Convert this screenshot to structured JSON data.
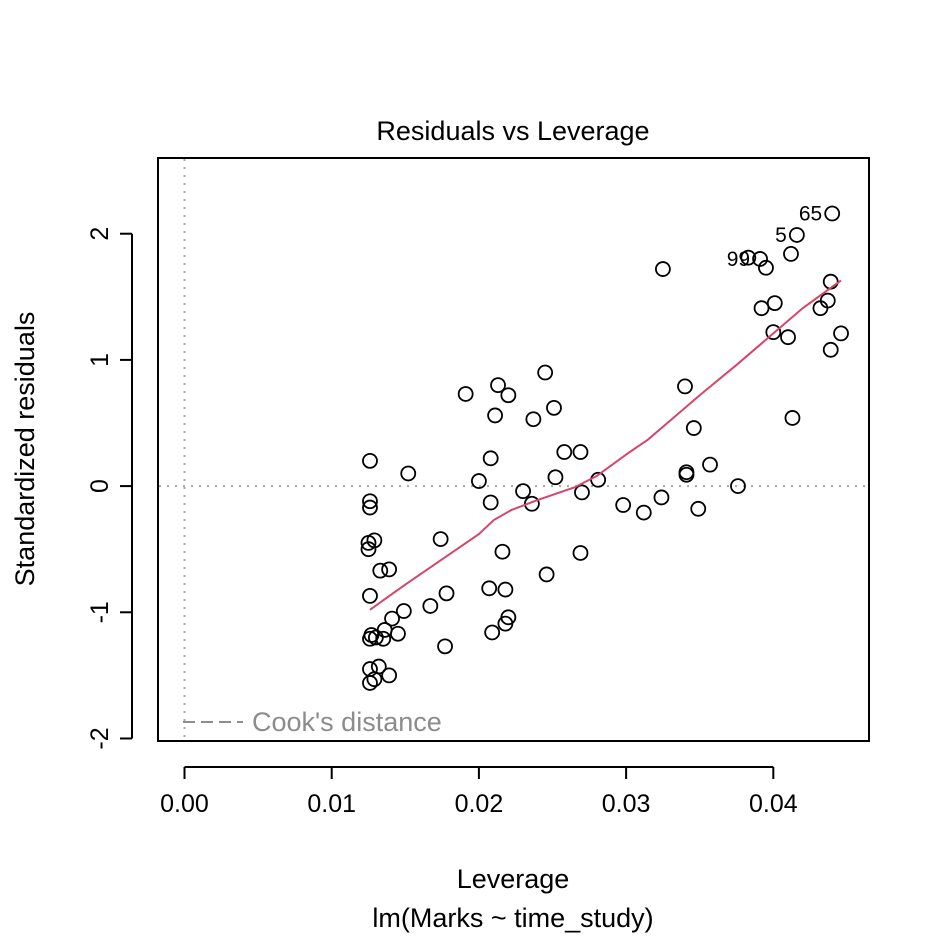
{
  "chart_data": {
    "type": "scatter",
    "title": "Residuals vs Leverage",
    "xlabel": "Leverage",
    "subtitle": "lm(Marks ~ time_study)",
    "ylabel": "Standardized residuals",
    "xlim": [
      -0.0018,
      0.0465
    ],
    "ylim": [
      -2.02,
      2.6
    ],
    "x_ticks": [
      {
        "value": 0.0,
        "label": "0.00"
      },
      {
        "value": 0.01,
        "label": "0.01"
      },
      {
        "value": 0.02,
        "label": "0.02"
      },
      {
        "value": 0.03,
        "label": "0.03"
      },
      {
        "value": 0.04,
        "label": "0.04"
      }
    ],
    "y_ticks": [
      {
        "value": -2,
        "label": "-2"
      },
      {
        "value": -1,
        "label": "-1"
      },
      {
        "value": 0,
        "label": "0"
      },
      {
        "value": 1,
        "label": "1"
      },
      {
        "value": 2,
        "label": "2"
      }
    ],
    "reference_lines": {
      "vertical_x": 0,
      "horizontal_y": 0
    },
    "legend": {
      "label": "Cook's distance",
      "position": "bottom-left"
    },
    "colors": {
      "smooth": "#d6456a",
      "reference": "#a8a8a8",
      "legend_text": "#8c8c8c"
    },
    "labeled_points": [
      {
        "label": "65",
        "x": 0.044,
        "y": 2.16
      },
      {
        "label": "5",
        "x": 0.0416,
        "y": 1.99
      },
      {
        "label": "99",
        "x": 0.0391,
        "y": 1.8
      }
    ],
    "points": [
      {
        "x": 0.044,
        "y": 2.16
      },
      {
        "x": 0.0416,
        "y": 1.99
      },
      {
        "x": 0.0391,
        "y": 1.8
      },
      {
        "x": 0.0383,
        "y": 1.81
      },
      {
        "x": 0.0395,
        "y": 1.73
      },
      {
        "x": 0.0412,
        "y": 1.84
      },
      {
        "x": 0.0325,
        "y": 1.72
      },
      {
        "x": 0.0439,
        "y": 1.62
      },
      {
        "x": 0.0437,
        "y": 1.47
      },
      {
        "x": 0.0401,
        "y": 1.45
      },
      {
        "x": 0.0392,
        "y": 1.41
      },
      {
        "x": 0.0432,
        "y": 1.41
      },
      {
        "x": 0.04,
        "y": 1.22
      },
      {
        "x": 0.0446,
        "y": 1.21
      },
      {
        "x": 0.041,
        "y": 1.18
      },
      {
        "x": 0.0439,
        "y": 1.08
      },
      {
        "x": 0.0245,
        "y": 0.9
      },
      {
        "x": 0.034,
        "y": 0.79
      },
      {
        "x": 0.0213,
        "y": 0.8
      },
      {
        "x": 0.0191,
        "y": 0.73
      },
      {
        "x": 0.022,
        "y": 0.72
      },
      {
        "x": 0.0251,
        "y": 0.62
      },
      {
        "x": 0.0211,
        "y": 0.56
      },
      {
        "x": 0.0237,
        "y": 0.53
      },
      {
        "x": 0.0413,
        "y": 0.54
      },
      {
        "x": 0.0346,
        "y": 0.46
      },
      {
        "x": 0.0258,
        "y": 0.27
      },
      {
        "x": 0.0269,
        "y": 0.27
      },
      {
        "x": 0.0126,
        "y": 0.2
      },
      {
        "x": 0.0208,
        "y": 0.22
      },
      {
        "x": 0.0357,
        "y": 0.17
      },
      {
        "x": 0.0152,
        "y": 0.1
      },
      {
        "x": 0.0341,
        "y": 0.11
      },
      {
        "x": 0.0341,
        "y": 0.09
      },
      {
        "x": 0.0252,
        "y": 0.07
      },
      {
        "x": 0.02,
        "y": 0.04
      },
      {
        "x": 0.0281,
        "y": 0.05
      },
      {
        "x": 0.0376,
        "y": 0.0
      },
      {
        "x": 0.023,
        "y": -0.04
      },
      {
        "x": 0.027,
        "y": -0.05
      },
      {
        "x": 0.0324,
        "y": -0.09
      },
      {
        "x": 0.0126,
        "y": -0.12
      },
      {
        "x": 0.0208,
        "y": -0.13
      },
      {
        "x": 0.0236,
        "y": -0.14
      },
      {
        "x": 0.0298,
        "y": -0.15
      },
      {
        "x": 0.0126,
        "y": -0.17
      },
      {
        "x": 0.0312,
        "y": -0.21
      },
      {
        "x": 0.0349,
        "y": -0.18
      },
      {
        "x": 0.0174,
        "y": -0.42
      },
      {
        "x": 0.0129,
        "y": -0.43
      },
      {
        "x": 0.0125,
        "y": -0.45
      },
      {
        "x": 0.0125,
        "y": -0.5
      },
      {
        "x": 0.0216,
        "y": -0.52
      },
      {
        "x": 0.0269,
        "y": -0.53
      },
      {
        "x": 0.0133,
        "y": -0.67
      },
      {
        "x": 0.0139,
        "y": -0.66
      },
      {
        "x": 0.0246,
        "y": -0.7
      },
      {
        "x": 0.0207,
        "y": -0.81
      },
      {
        "x": 0.0218,
        "y": -0.82
      },
      {
        "x": 0.0178,
        "y": -0.85
      },
      {
        "x": 0.0126,
        "y": -0.87
      },
      {
        "x": 0.0167,
        "y": -0.95
      },
      {
        "x": 0.0149,
        "y": -0.99
      },
      {
        "x": 0.0141,
        "y": -1.05
      },
      {
        "x": 0.022,
        "y": -1.04
      },
      {
        "x": 0.0218,
        "y": -1.09
      },
      {
        "x": 0.0136,
        "y": -1.14
      },
      {
        "x": 0.0209,
        "y": -1.16
      },
      {
        "x": 0.0145,
        "y": -1.17
      },
      {
        "x": 0.0127,
        "y": -1.18
      },
      {
        "x": 0.0126,
        "y": -1.21
      },
      {
        "x": 0.013,
        "y": -1.2
      },
      {
        "x": 0.0135,
        "y": -1.21
      },
      {
        "x": 0.0177,
        "y": -1.27
      },
      {
        "x": 0.0132,
        "y": -1.43
      },
      {
        "x": 0.0126,
        "y": -1.45
      },
      {
        "x": 0.0139,
        "y": -1.5
      },
      {
        "x": 0.0129,
        "y": -1.53
      },
      {
        "x": 0.0126,
        "y": -1.56
      }
    ],
    "smooth_line": [
      {
        "x": 0.0126,
        "y": -0.98
      },
      {
        "x": 0.015,
        "y": -0.78
      },
      {
        "x": 0.0175,
        "y": -0.58
      },
      {
        "x": 0.02,
        "y": -0.38
      },
      {
        "x": 0.021,
        "y": -0.27
      },
      {
        "x": 0.0222,
        "y": -0.19
      },
      {
        "x": 0.024,
        "y": -0.11
      },
      {
        "x": 0.0265,
        "y": -0.01
      },
      {
        "x": 0.028,
        "y": 0.08
      },
      {
        "x": 0.03,
        "y": 0.25
      },
      {
        "x": 0.0315,
        "y": 0.37
      },
      {
        "x": 0.033,
        "y": 0.52
      },
      {
        "x": 0.035,
        "y": 0.72
      },
      {
        "x": 0.0375,
        "y": 0.96
      },
      {
        "x": 0.04,
        "y": 1.21
      },
      {
        "x": 0.042,
        "y": 1.41
      },
      {
        "x": 0.0446,
        "y": 1.63
      }
    ]
  }
}
